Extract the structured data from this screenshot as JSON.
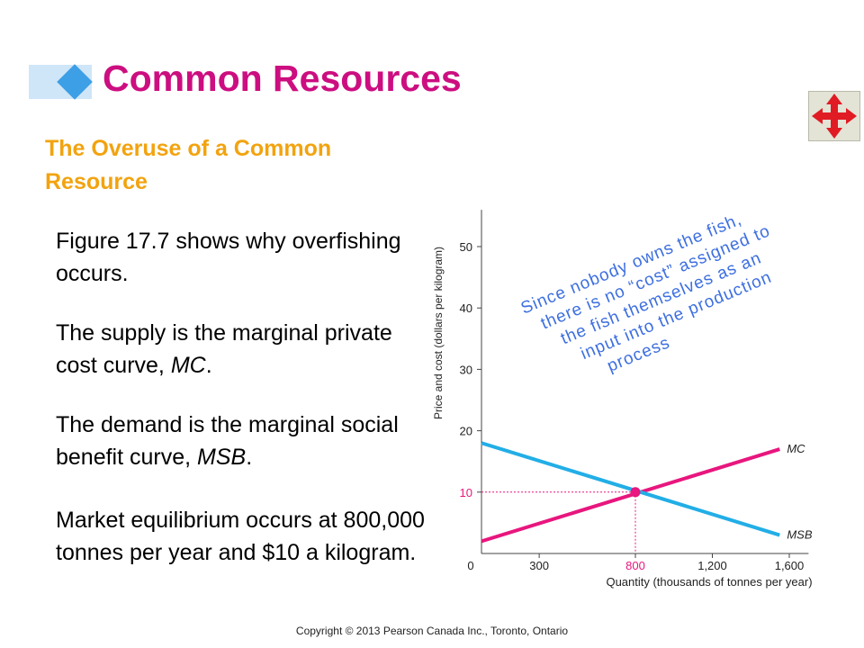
{
  "slide": {
    "title": "Common Resources",
    "subtitle": "The Overuse of a Common Resource",
    "bullets": [
      {
        "text": "Figure 17.7 shows why overfishing occurs."
      },
      {
        "text": "The supply is the marginal private cost curve, ",
        "em": "MC",
        "tail": "."
      },
      {
        "text": "The demand is the marginal social benefit curve, ",
        "em": "MSB",
        "tail": "."
      },
      {
        "text": "Market equilibrium occurs at 800,000 tonnes per year and $10 a kilogram."
      }
    ],
    "copyright": "Copyright © 2013 Pearson Canada Inc., Toronto, Ontario",
    "colors": {
      "title": "#cc0e80",
      "subtitle": "#f2a30f",
      "accent_blue": "#3d9fe6",
      "nav_arrows": "#e01b24"
    },
    "nav_icon": "move-arrows-icon"
  },
  "chart_data": {
    "type": "line",
    "ylabel": "Price and cost (dollars per kilogram)",
    "xlabel": "Quantity (thousands of tonnes per year)",
    "x_ticks": [
      "0",
      "300",
      "800",
      "1,200",
      "1,600"
    ],
    "x_tick_values": [
      0,
      300,
      800,
      1200,
      1600
    ],
    "y_ticks": [
      "10",
      "20",
      "30",
      "40",
      "50"
    ],
    "y_tick_values": [
      10,
      20,
      30,
      40,
      50
    ],
    "xlim": [
      0,
      1700
    ],
    "ylim": [
      0,
      55
    ],
    "series": [
      {
        "name": "MC",
        "color": "#e8167e",
        "x": [
          0,
          1550
        ],
        "y": [
          2,
          17
        ]
      },
      {
        "name": "MSB",
        "color": "#22aee6",
        "x": [
          0,
          1550
        ],
        "y": [
          18,
          3
        ]
      }
    ],
    "equilibrium": {
      "x": 800,
      "y": 10,
      "x_label": "800",
      "y_label": "10"
    },
    "annotation": "Since nobody owns the fish, there is no “cost” assigned to the fish themselves as an input into the production process",
    "grid": false
  }
}
